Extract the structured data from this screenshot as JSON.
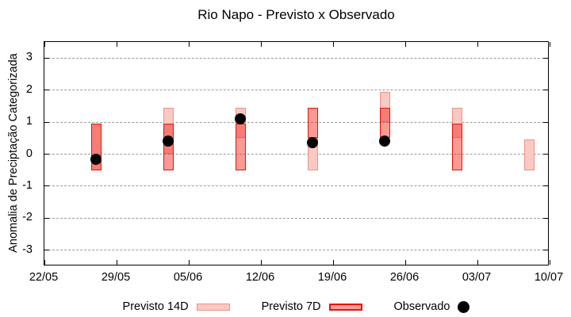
{
  "chart_data": {
    "type": "bar",
    "subtype": "range-interval-bars-with-observations",
    "title": "Rio Napo - Previsto x Observado",
    "ylabel": "Anomalia de Preciptação Categorizada",
    "xlabel": "",
    "ylim": [
      -3.5,
      3.5
    ],
    "y_ticks": [
      3,
      2,
      1,
      0,
      -1,
      -2,
      -3
    ],
    "x_ticks": [
      "22/05",
      "29/05",
      "05/06",
      "12/06",
      "19/06",
      "26/06",
      "03/07",
      "10/07"
    ],
    "grid": "horizontal-dotted",
    "legend_position": "bottom-center",
    "colors": {
      "previsto_14d_fill": "#f9c9c3",
      "previsto_14d_border": "#ee9184",
      "previsto_7d_fill": "rgba(242,40,30,0.47)",
      "previsto_7d_border": "#e3140c",
      "observado": "#000000",
      "grid": "#999999"
    },
    "series": [
      {
        "name": "Previsto 14D",
        "type": "range-bar",
        "points": [
          {
            "date": "27/05",
            "low": -0.5,
            "high": 0.95
          },
          {
            "date": "03/06",
            "low": 0.0,
            "high": 1.45
          },
          {
            "date": "10/06",
            "low": 0.5,
            "high": 1.45
          },
          {
            "date": "17/06",
            "low": -0.5,
            "high": 0.5
          },
          {
            "date": "24/06",
            "low": 1.0,
            "high": 1.95
          },
          {
            "date": "01/07",
            "low": 0.5,
            "high": 1.45
          },
          {
            "date": "08/07",
            "low": -0.5,
            "high": 0.45
          }
        ]
      },
      {
        "name": "Previsto 7D",
        "type": "range-bar",
        "points": [
          {
            "date": "27/05",
            "low": -0.5,
            "high": 0.95
          },
          {
            "date": "03/06",
            "low": -0.5,
            "high": 0.95
          },
          {
            "date": "10/06",
            "low": -0.5,
            "high": 0.95
          },
          {
            "date": "17/06",
            "low": 0.5,
            "high": 1.45
          },
          {
            "date": "24/06",
            "low": 0.5,
            "high": 1.45
          },
          {
            "date": "01/07",
            "low": -0.5,
            "high": 0.95
          }
        ]
      },
      {
        "name": "Observado",
        "type": "point",
        "points": [
          {
            "date": "27/05",
            "value": -0.15
          },
          {
            "date": "03/06",
            "value": 0.4
          },
          {
            "date": "10/06",
            "value": 1.1
          },
          {
            "date": "17/06",
            "value": 0.35
          },
          {
            "date": "24/06",
            "value": 0.4
          }
        ]
      }
    ]
  }
}
